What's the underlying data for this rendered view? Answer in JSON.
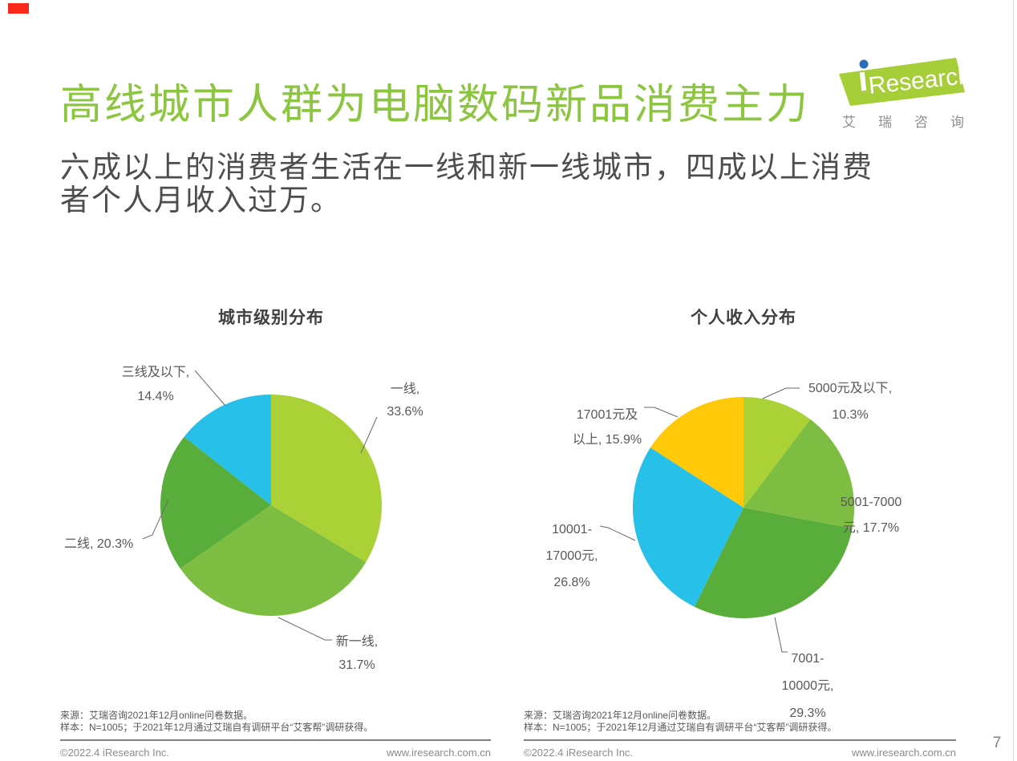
{
  "page": {
    "red_marker_color": "#F8281C",
    "page_number": "7",
    "accent_green": "#8CC53F"
  },
  "header": {
    "title": "高线城市人群为电脑数码新品消费主力",
    "subtitle_lines": [
      "六成以上的消费者生活在一线和新一线城市，四成以上消费",
      "者个人月收入过万。"
    ],
    "logo": {
      "brand": "Research",
      "brand_i": "i",
      "caption_chars": [
        "艾",
        "瑞",
        "咨",
        "询"
      ],
      "banner_color": "#A5CE39",
      "dot_color": "#2C6DB5"
    }
  },
  "charts": [
    {
      "title": "城市级别分布",
      "slices": [
        {
          "id": "tier-1",
          "label": "一线",
          "value": 33.6,
          "color": "#AAD136",
          "lines": [
            "一线,",
            "33.6%"
          ]
        },
        {
          "id": "new-tier-1",
          "label": "新一线",
          "value": 31.7,
          "color": "#7DBE42",
          "lines": [
            "新一线,",
            "31.7%"
          ]
        },
        {
          "id": "tier-2",
          "label": "二线",
          "value": 20.3,
          "color": "#58AD3B",
          "lines": [
            "二线, 20.3%"
          ]
        },
        {
          "id": "tier-3-below",
          "label": "三线及以下",
          "value": 14.4,
          "color": "#27C0E9",
          "lines": [
            "三线及以下,",
            "14.4%"
          ]
        }
      ]
    },
    {
      "title": "个人收入分布",
      "slices": [
        {
          "id": "under-5000",
          "label": "5000元及以下",
          "value": 10.3,
          "color": "#AAD136",
          "lines": [
            "5000元及以下,",
            "10.3%"
          ]
        },
        {
          "id": "5001-7000",
          "label": "5001-7000元",
          "value": 17.7,
          "color": "#7DBE42",
          "lines": [
            "5001-7000",
            "元, 17.7%"
          ]
        },
        {
          "id": "7001-10000",
          "label": "7001-10000元",
          "value": 29.3,
          "color": "#58AD3B",
          "lines": [
            "7001-",
            "10000元,",
            "29.3%"
          ]
        },
        {
          "id": "10001-17000",
          "label": "10001-17000元",
          "value": 26.8,
          "color": "#27C0E9",
          "lines": [
            "10001-",
            "17000元,",
            "26.8%"
          ]
        },
        {
          "id": "over-17001",
          "label": "17001元及以上",
          "value": 15.9,
          "color": "#FFC808",
          "lines": [
            "17001元及",
            "以上, 15.9%"
          ]
        }
      ]
    }
  ],
  "chart_data": [
    {
      "type": "pie",
      "title": "城市级别分布",
      "categories": [
        "一线",
        "新一线",
        "二线",
        "三线及以下"
      ],
      "values": [
        33.6,
        31.7,
        20.3,
        14.4
      ],
      "colors": [
        "#AAD136",
        "#7DBE42",
        "#58AD3B",
        "#27C0E9"
      ],
      "start_angle": "12-o-clock",
      "direction": "clockwise",
      "legend": "none, outside data labels with leader lines"
    },
    {
      "type": "pie",
      "title": "个人收入分布",
      "categories": [
        "5000元及以下",
        "5001-7000元",
        "7001-10000元",
        "10001-17000元",
        "17001元及以上"
      ],
      "values": [
        10.3,
        17.7,
        29.3,
        26.8,
        15.9
      ],
      "colors": [
        "#AAD136",
        "#7DBE42",
        "#58AD3B",
        "#27C0E9",
        "#FFC808"
      ],
      "start_angle": "12-o-clock",
      "direction": "clockwise",
      "legend": "none, outside data labels with leader lines"
    }
  ],
  "footer": {
    "source_line1": "来源：艾瑞咨询2021年12月online问卷数据。",
    "source_line2": "样本：N=1005；于2021年12月通过艾瑞自有调研平台“艾客帮”调研获得。",
    "copyright": "©2022.4 iResearch Inc.",
    "website": "www.iresearch.com.cn"
  }
}
